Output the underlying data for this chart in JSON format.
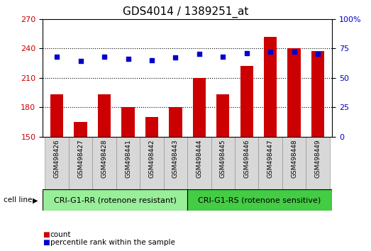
{
  "title": "GDS4014 / 1389251_at",
  "categories": [
    "GSM498426",
    "GSM498427",
    "GSM498428",
    "GSM498441",
    "GSM498442",
    "GSM498443",
    "GSM498444",
    "GSM498445",
    "GSM498446",
    "GSM498447",
    "GSM498448",
    "GSM498449"
  ],
  "bar_values": [
    193,
    165,
    193,
    180,
    170,
    180,
    210,
    193,
    222,
    252,
    240,
    237
  ],
  "scatter_values": [
    68,
    64,
    68,
    66,
    65,
    67,
    70,
    68,
    71,
    72,
    72,
    70
  ],
  "ylim_left": [
    150,
    270
  ],
  "ylim_right": [
    0,
    100
  ],
  "yticks_left": [
    150,
    180,
    210,
    240,
    270
  ],
  "yticks_right": [
    0,
    25,
    50,
    75,
    100
  ],
  "bar_color": "#cc0000",
  "scatter_color": "#0000cc",
  "plot_bg": "#ffffff",
  "group1_label": "CRI-G1-RR (rotenone resistant)",
  "group2_label": "CRI-G1-RS (rotenone sensitive)",
  "group1_color": "#99ee99",
  "group2_color": "#44cc44",
  "legend_count_label": "count",
  "legend_pct_label": "percentile rank within the sample",
  "cell_line_label": "cell line",
  "ylabel_left_color": "#cc0000",
  "ylabel_right_color": "#0000cc",
  "tick_label_bg": "#d8d8d8",
  "title_fontsize": 11,
  "tick_fontsize": 8,
  "group_fontsize": 8
}
